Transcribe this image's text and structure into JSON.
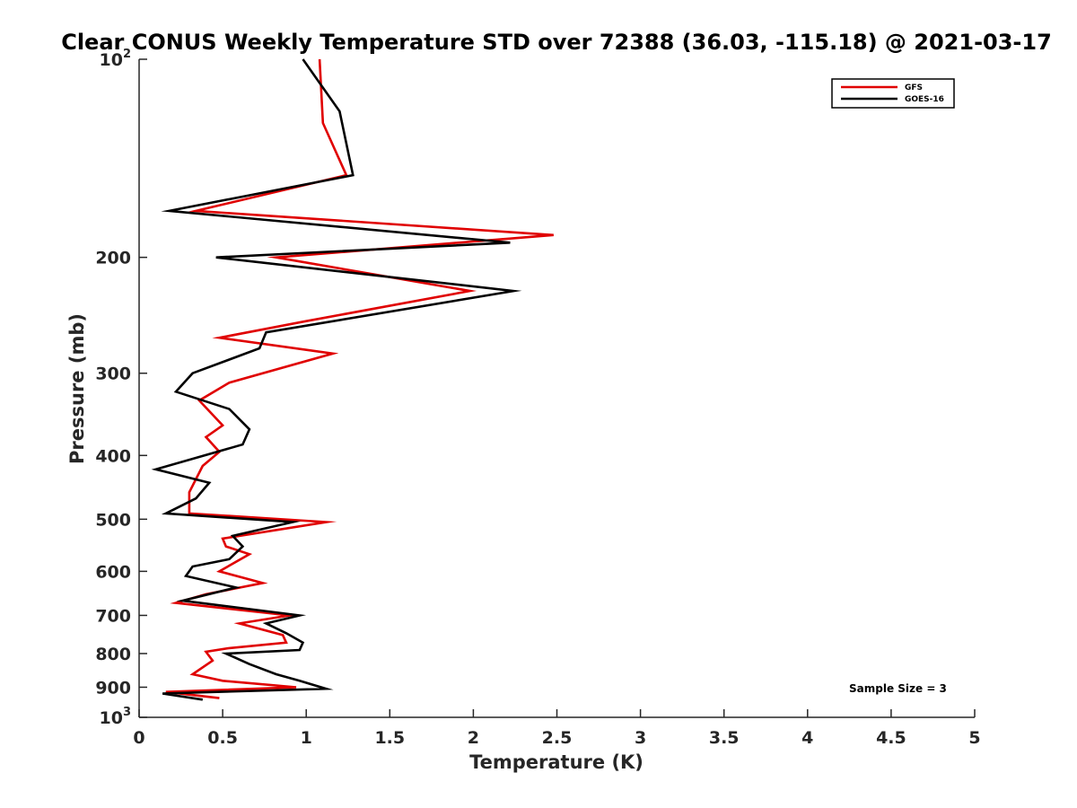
{
  "chart_data": {
    "type": "line",
    "title": "Clear CONUS Weekly Temperature STD over 72388 (36.03, -115.18) @ 2021-03-17",
    "xlabel": "Temperature (K)",
    "ylabel": "Pressure (mb)",
    "xlim": [
      0,
      5
    ],
    "ylim": [
      100,
      1000
    ],
    "y_scale": "log",
    "y_reversed": true,
    "grid": false,
    "legend_position": "top-right",
    "x_ticks": [
      "0",
      "0.5",
      "1",
      "1.5",
      "2",
      "2.5",
      "3",
      "3.5",
      "4",
      "4.5",
      "5"
    ],
    "y_ticks": [
      {
        "value": 100,
        "base": "10",
        "exp": "2"
      },
      {
        "value": 200,
        "label": "200"
      },
      {
        "value": 300,
        "label": "300"
      },
      {
        "value": 400,
        "label": "400"
      },
      {
        "value": 500,
        "label": "500"
      },
      {
        "value": 600,
        "label": "600"
      },
      {
        "value": 700,
        "label": "700"
      },
      {
        "value": 800,
        "label": "800"
      },
      {
        "value": 900,
        "label": "900"
      },
      {
        "value": 1000,
        "base": "10",
        "exp": "3"
      }
    ],
    "annotation": "Sample Size = 3",
    "series": [
      {
        "name": "GFS",
        "color": "#e00000",
        "points": [
          [
            1.08,
            100
          ],
          [
            1.1,
            125
          ],
          [
            1.24,
            150
          ],
          [
            0.34,
            170
          ],
          [
            2.48,
            185
          ],
          [
            0.82,
            200
          ],
          [
            1.98,
            225
          ],
          [
            1.0,
            250
          ],
          [
            0.48,
            265
          ],
          [
            1.16,
            280
          ],
          [
            0.54,
            310
          ],
          [
            0.36,
            330
          ],
          [
            0.5,
            360
          ],
          [
            0.4,
            375
          ],
          [
            0.48,
            395
          ],
          [
            0.38,
            415
          ],
          [
            0.3,
            455
          ],
          [
            0.3,
            490
          ],
          [
            1.12,
            505
          ],
          [
            0.5,
            535
          ],
          [
            0.52,
            550
          ],
          [
            0.66,
            565
          ],
          [
            0.48,
            600
          ],
          [
            0.74,
            625
          ],
          [
            0.4,
            650
          ],
          [
            0.22,
            670
          ],
          [
            0.9,
            700
          ],
          [
            0.6,
            720
          ],
          [
            0.86,
            750
          ],
          [
            0.88,
            770
          ],
          [
            0.54,
            785
          ],
          [
            0.4,
            795
          ],
          [
            0.44,
            820
          ],
          [
            0.32,
            860
          ],
          [
            0.5,
            880
          ],
          [
            0.94,
            900
          ],
          [
            0.16,
            915
          ],
          [
            0.48,
            935
          ]
        ]
      },
      {
        "name": "GOES-16",
        "color": "#000000",
        "points": [
          [
            0.98,
            100
          ],
          [
            1.2,
            120
          ],
          [
            1.28,
            150
          ],
          [
            0.18,
            170
          ],
          [
            2.22,
            190
          ],
          [
            0.46,
            200
          ],
          [
            2.24,
            225
          ],
          [
            0.76,
            260
          ],
          [
            0.72,
            275
          ],
          [
            0.32,
            300
          ],
          [
            0.22,
            320
          ],
          [
            0.54,
            340
          ],
          [
            0.66,
            365
          ],
          [
            0.62,
            385
          ],
          [
            0.1,
            420
          ],
          [
            0.42,
            440
          ],
          [
            0.34,
            465
          ],
          [
            0.16,
            490
          ],
          [
            0.92,
            505
          ],
          [
            0.56,
            530
          ],
          [
            0.62,
            550
          ],
          [
            0.54,
            575
          ],
          [
            0.32,
            590
          ],
          [
            0.28,
            610
          ],
          [
            0.58,
            635
          ],
          [
            0.26,
            665
          ],
          [
            0.96,
            700
          ],
          [
            0.76,
            720
          ],
          [
            0.88,
            745
          ],
          [
            0.98,
            770
          ],
          [
            0.96,
            790
          ],
          [
            0.52,
            800
          ],
          [
            0.66,
            830
          ],
          [
            0.82,
            860
          ],
          [
            0.96,
            880
          ],
          [
            1.12,
            905
          ],
          [
            0.14,
            920
          ],
          [
            0.38,
            940
          ]
        ]
      }
    ]
  }
}
